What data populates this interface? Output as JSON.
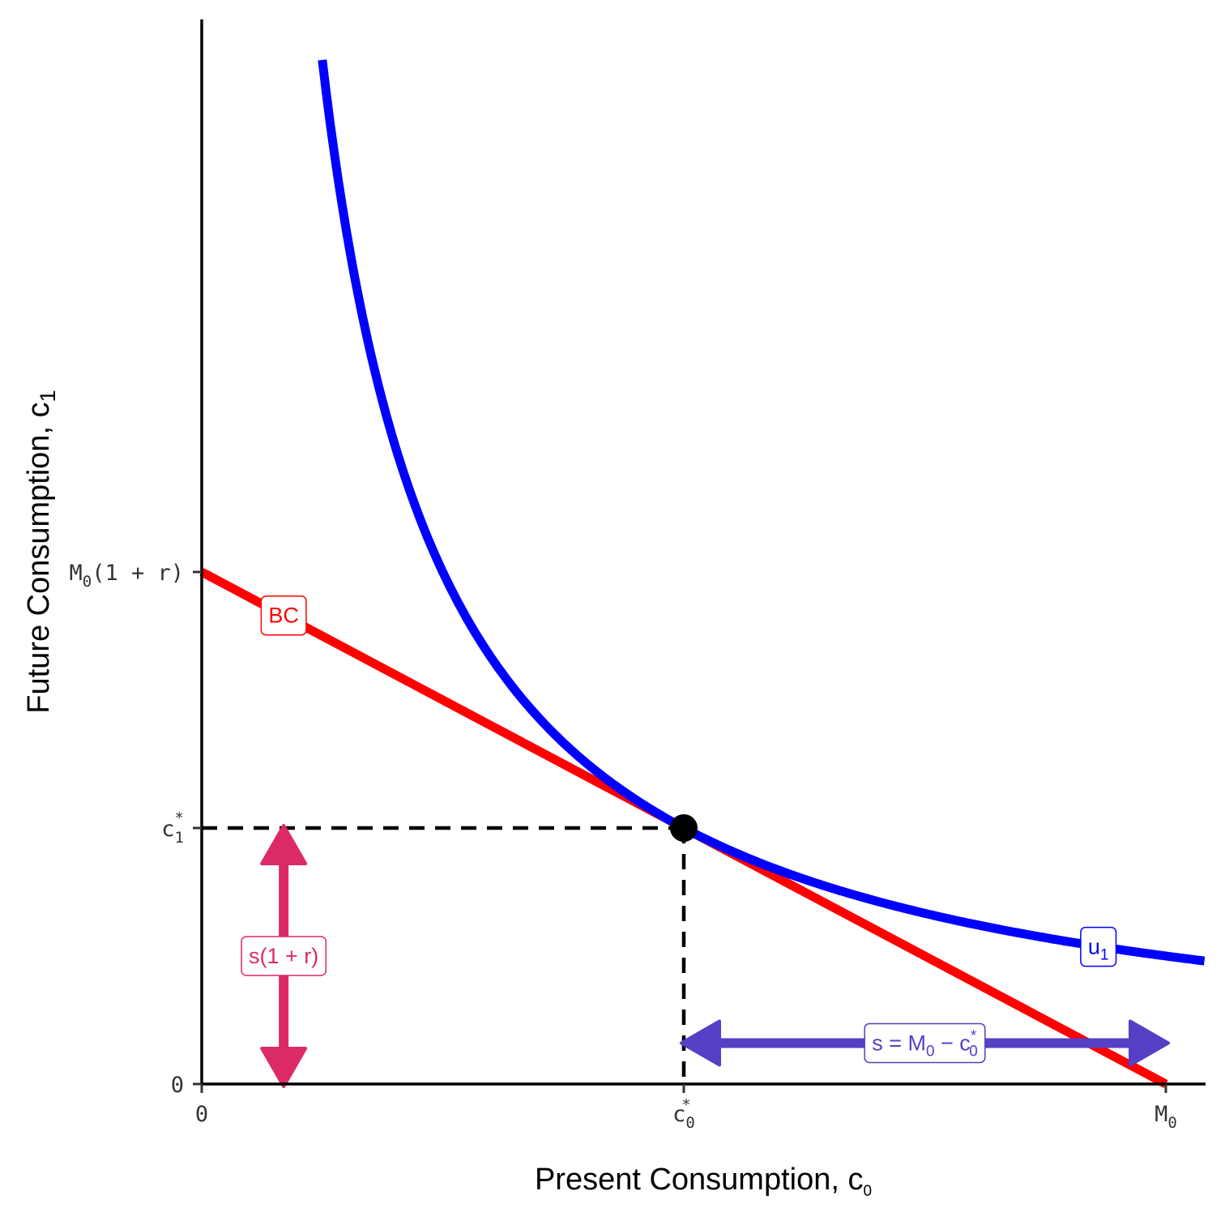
{
  "chart_data": {
    "type": "line",
    "title": "",
    "xlabel": "Present Consumption, c",
    "xlabel_sub": "0",
    "ylabel": "Future Consumption, c",
    "ylabel_sub": "1",
    "xlim": [
      0,
      10.4
    ],
    "ylim": [
      0,
      10.4
    ],
    "grid": false,
    "x_ticks": [
      {
        "value": 0,
        "base": "0",
        "sub": "",
        "sup": ""
      },
      {
        "value": 5,
        "base": "c",
        "sub": "0",
        "sup": "*"
      },
      {
        "value": 10,
        "base": "M",
        "sub": "0",
        "sup": ""
      }
    ],
    "y_ticks": [
      {
        "value": 0,
        "base": "0",
        "sub": "",
        "sup": "",
        "rest": ""
      },
      {
        "value": 2.5,
        "base": "c",
        "sub": "1",
        "sup": "*",
        "rest": ""
      },
      {
        "value": 5,
        "base": "M",
        "sub": "0",
        "sup": "",
        "rest": "(1 + r)"
      }
    ],
    "series": [
      {
        "name": "BC",
        "kind": "budget constraint",
        "x": [
          0,
          10
        ],
        "y": [
          5,
          0
        ],
        "color": "#ff0000"
      },
      {
        "name": "u",
        "name_sub": "1",
        "kind": "indifference curve",
        "equation": "y = 12.5 / x",
        "x_range": [
          1.25,
          10.4
        ],
        "color": "#0000ff"
      }
    ],
    "optimum": {
      "x": 5,
      "y": 2.5,
      "color": "#000000"
    },
    "guides": {
      "style": "dashed",
      "color": "#000000"
    },
    "annotations": [
      {
        "text": "BC",
        "x": 0.85,
        "y": 4.575,
        "color": "#ff0000"
      },
      {
        "text": "u",
        "text_sub": "1",
        "x": 9.3,
        "y": 1.34,
        "color": "#0000ff"
      },
      {
        "text": "s(1 + r)",
        "x": 0.85,
        "y": 1.25,
        "color": "#dc2a64",
        "arrow": "vertical",
        "from": 2.5,
        "to": 0
      },
      {
        "text": "s = M",
        "text_sub": "0",
        "text_rest": " − c",
        "text_sub2": "0",
        "text_sup2": "*",
        "x": 7.5,
        "y": 0.4,
        "color": "#5440c4",
        "arrow": "horizontal",
        "from": 5,
        "to": 10
      }
    ]
  }
}
